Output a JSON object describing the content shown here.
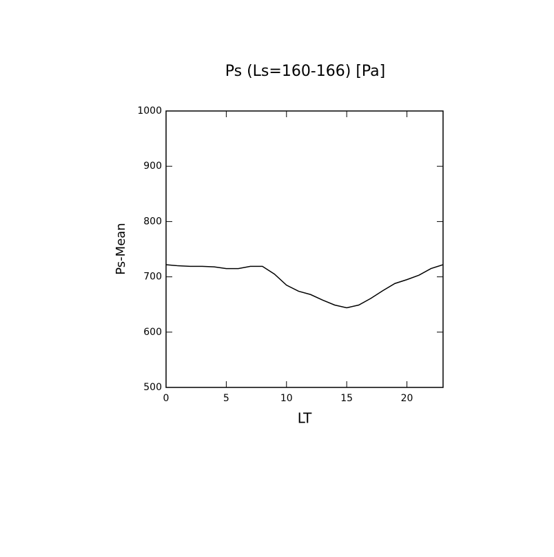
{
  "chart_data": {
    "type": "line",
    "title": "Ps (Ls=160-166) [Pa]",
    "x_label": "LT",
    "y_label": "Ps-Mean",
    "x": [
      0,
      1,
      2,
      3,
      4,
      5,
      6,
      7,
      8,
      9,
      10,
      11,
      12,
      13,
      14,
      15,
      16,
      17,
      18,
      19,
      20,
      21,
      22,
      23
    ],
    "series": [
      {
        "color": "#000000",
        "values": [
          722,
          720,
          719,
          719,
          718,
          715,
          715,
          719,
          719,
          705,
          685,
          674,
          668,
          658,
          649,
          644,
          649,
          661,
          675,
          688,
          695,
          703,
          715,
          722
        ]
      }
    ],
    "xlim": [
      0,
      23
    ],
    "ylim": [
      500,
      1000
    ],
    "xticks": [
      0,
      5,
      10,
      15,
      20
    ],
    "yticks": [
      500,
      600,
      700,
      800,
      900,
      1000
    ]
  }
}
